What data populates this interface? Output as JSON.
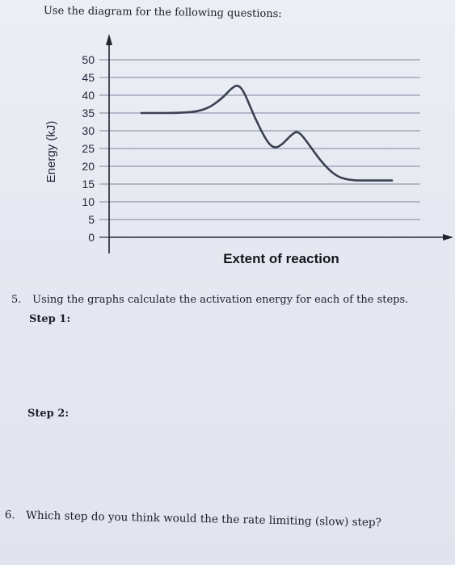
{
  "instructions": "Use the diagram for the following questions:",
  "chart_data": {
    "type": "line",
    "title": "",
    "xlabel": "Extent of reaction",
    "ylabel": "Energy (kJ)",
    "yticks": [
      "50",
      "45",
      "40",
      "35",
      "30",
      "25",
      "20",
      "15",
      "10",
      "5",
      "0"
    ],
    "ylim": [
      0,
      50
    ],
    "grid": true,
    "series": [
      {
        "points": [
          [
            0.0,
            35
          ],
          [
            0.18,
            35
          ],
          [
            0.26,
            36
          ],
          [
            0.32,
            39
          ],
          [
            0.36,
            42
          ],
          [
            0.385,
            43
          ],
          [
            0.41,
            41
          ],
          [
            0.45,
            34
          ],
          [
            0.5,
            27
          ],
          [
            0.53,
            25
          ],
          [
            0.56,
            26
          ],
          [
            0.6,
            29
          ],
          [
            0.625,
            30
          ],
          [
            0.66,
            27
          ],
          [
            0.72,
            21
          ],
          [
            0.78,
            17
          ],
          [
            0.84,
            16
          ],
          [
            0.9,
            16
          ],
          [
            1.0,
            16
          ]
        ],
        "color": "#3a4152"
      }
    ]
  },
  "questions": [
    {
      "number": "5.",
      "text": "Using the graphs calculate the activation energy for each of the steps."
    },
    {
      "number": "6.",
      "text": "Which step do you think would the the rate limiting (slow) step?"
    }
  ],
  "steps": [
    "Step 1:",
    "Step 2:"
  ]
}
